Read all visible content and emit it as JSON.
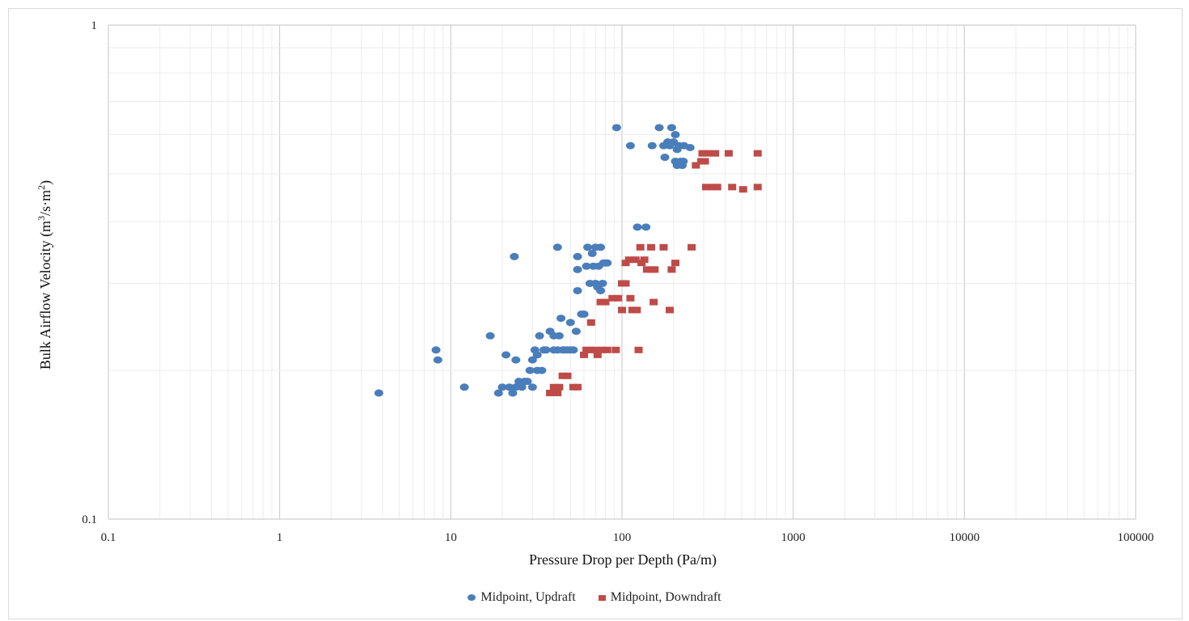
{
  "chart_data": {
    "type": "scatter",
    "xlabel": "Pressure Drop per Depth (Pa/m)",
    "ylabel": "Bulk Airflow Velocity (m³/s·m²)",
    "x_scale": "log",
    "y_scale": "log",
    "xlim": [
      0.1,
      100000
    ],
    "ylim": [
      0.1,
      1
    ],
    "x_ticks": [
      "0.1",
      "1",
      "10",
      "100",
      "1000",
      "10000",
      "100000"
    ],
    "y_ticks": [
      "0.1",
      "1"
    ],
    "grid": true,
    "legend_position": "bottom",
    "series": [
      {
        "name": "Midpoint, Updraft",
        "marker": "circle",
        "color": "#4a7ebb",
        "points": [
          [
            3.8,
            0.18
          ],
          [
            8.2,
            0.22
          ],
          [
            8.4,
            0.21
          ],
          [
            12,
            0.185
          ],
          [
            17,
            0.235
          ],
          [
            19,
            0.18
          ],
          [
            20,
            0.185
          ],
          [
            21,
            0.215
          ],
          [
            22,
            0.185
          ],
          [
            23,
            0.18
          ],
          [
            23.5,
            0.34
          ],
          [
            24,
            0.185
          ],
          [
            24,
            0.21
          ],
          [
            25,
            0.19
          ],
          [
            26,
            0.185
          ],
          [
            27,
            0.19
          ],
          [
            28,
            0.19
          ],
          [
            29,
            0.2
          ],
          [
            30,
            0.185
          ],
          [
            30,
            0.21
          ],
          [
            31,
            0.22
          ],
          [
            32,
            0.2
          ],
          [
            32,
            0.215
          ],
          [
            33,
            0.235
          ],
          [
            34,
            0.2
          ],
          [
            35,
            0.22
          ],
          [
            36,
            0.22
          ],
          [
            38,
            0.24
          ],
          [
            40,
            0.235
          ],
          [
            40,
            0.22
          ],
          [
            42,
            0.22
          ],
          [
            42,
            0.355
          ],
          [
            43,
            0.235
          ],
          [
            44,
            0.255
          ],
          [
            45,
            0.22
          ],
          [
            46,
            0.22
          ],
          [
            48,
            0.22
          ],
          [
            50,
            0.22
          ],
          [
            50,
            0.25
          ],
          [
            52,
            0.22
          ],
          [
            54,
            0.24
          ],
          [
            55,
            0.32
          ],
          [
            55,
            0.34
          ],
          [
            55,
            0.29
          ],
          [
            58,
            0.26
          ],
          [
            60,
            0.26
          ],
          [
            62,
            0.325
          ],
          [
            63,
            0.355
          ],
          [
            65,
            0.3
          ],
          [
            67,
            0.345
          ],
          [
            68,
            0.325
          ],
          [
            70,
            0.3
          ],
          [
            70,
            0.355
          ],
          [
            72,
            0.295
          ],
          [
            73,
            0.325
          ],
          [
            75,
            0.29
          ],
          [
            75,
            0.355
          ],
          [
            77,
            0.3
          ],
          [
            78,
            0.33
          ],
          [
            80,
            0.33
          ],
          [
            82,
            0.33
          ],
          [
            93,
            0.62
          ],
          [
            112,
            0.57
          ],
          [
            123,
            0.39
          ],
          [
            138,
            0.39
          ],
          [
            150,
            0.57
          ],
          [
            165,
            0.62
          ],
          [
            175,
            0.57
          ],
          [
            178,
            0.54
          ],
          [
            185,
            0.58
          ],
          [
            190,
            0.57
          ],
          [
            195,
            0.62
          ],
          [
            200,
            0.58
          ],
          [
            205,
            0.6
          ],
          [
            205,
            0.53
          ],
          [
            210,
            0.52
          ],
          [
            210,
            0.56
          ],
          [
            215,
            0.57
          ],
          [
            220,
            0.53
          ],
          [
            225,
            0.52
          ],
          [
            228,
            0.53
          ],
          [
            230,
            0.57
          ],
          [
            250,
            0.565
          ]
        ]
      },
      {
        "name": "Midpoint, Downdraft",
        "marker": "square",
        "color": "#be4b48",
        "points": [
          [
            38,
            0.18
          ],
          [
            40,
            0.185
          ],
          [
            42,
            0.18
          ],
          [
            43,
            0.185
          ],
          [
            45,
            0.195
          ],
          [
            48,
            0.195
          ],
          [
            52,
            0.185
          ],
          [
            55,
            0.185
          ],
          [
            60,
            0.215
          ],
          [
            62,
            0.22
          ],
          [
            65,
            0.22
          ],
          [
            66,
            0.25
          ],
          [
            70,
            0.22
          ],
          [
            72,
            0.215
          ],
          [
            75,
            0.275
          ],
          [
            76,
            0.22
          ],
          [
            80,
            0.275
          ],
          [
            82,
            0.22
          ],
          [
            88,
            0.28
          ],
          [
            92,
            0.22
          ],
          [
            95,
            0.28
          ],
          [
            100,
            0.3
          ],
          [
            100,
            0.265
          ],
          [
            105,
            0.33
          ],
          [
            105,
            0.3
          ],
          [
            110,
            0.335
          ],
          [
            112,
            0.28
          ],
          [
            115,
            0.265
          ],
          [
            120,
            0.335
          ],
          [
            122,
            0.265
          ],
          [
            125,
            0.22
          ],
          [
            128,
            0.355
          ],
          [
            130,
            0.33
          ],
          [
            135,
            0.335
          ],
          [
            140,
            0.32
          ],
          [
            148,
            0.355
          ],
          [
            150,
            0.32
          ],
          [
            153,
            0.275
          ],
          [
            155,
            0.32
          ],
          [
            175,
            0.355
          ],
          [
            190,
            0.265
          ],
          [
            195,
            0.32
          ],
          [
            205,
            0.33
          ],
          [
            255,
            0.355
          ],
          [
            270,
            0.52
          ],
          [
            290,
            0.53
          ],
          [
            295,
            0.55
          ],
          [
            305,
            0.53
          ],
          [
            310,
            0.47
          ],
          [
            320,
            0.55
          ],
          [
            340,
            0.47
          ],
          [
            350,
            0.55
          ],
          [
            360,
            0.47
          ],
          [
            420,
            0.55
          ],
          [
            440,
            0.47
          ],
          [
            510,
            0.465
          ],
          [
            620,
            0.55
          ],
          [
            620,
            0.47
          ]
        ]
      }
    ]
  }
}
